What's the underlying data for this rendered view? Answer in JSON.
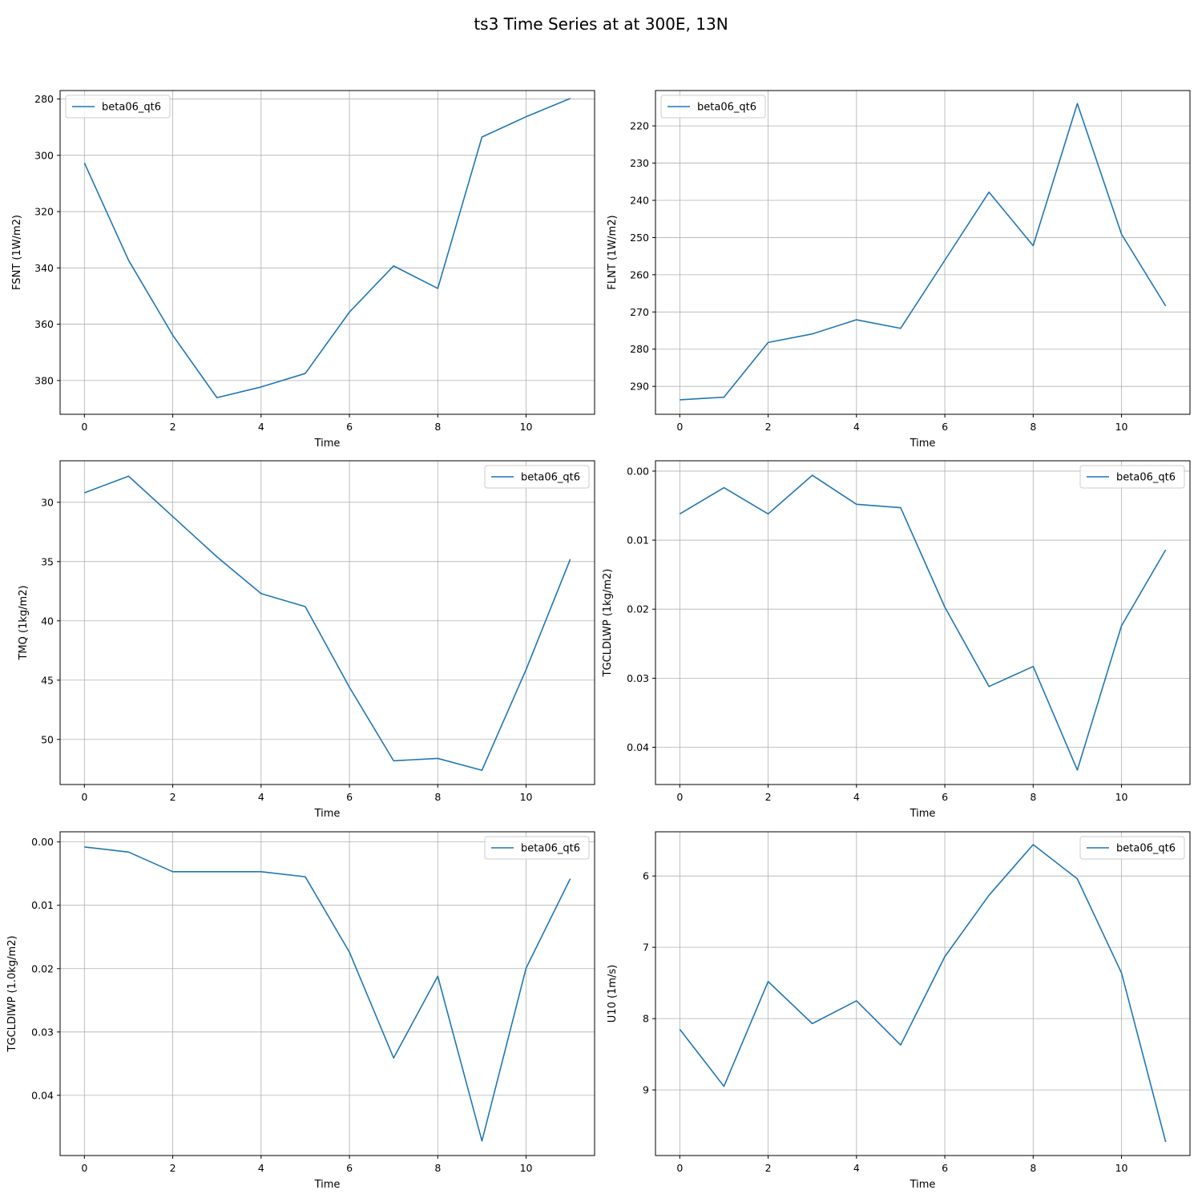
{
  "figure": {
    "title": "ts3 Time Series at at 300E, 13N"
  },
  "chart_data": [
    {
      "type": "line",
      "xlabel": "Time",
      "ylabel": "FSNT (1W/m2)",
      "x": [
        0,
        1,
        2,
        3,
        4,
        5,
        6,
        7,
        8,
        9,
        10,
        11
      ],
      "xlim": [
        -0.55,
        11.55
      ],
      "xticks": [
        0,
        2,
        4,
        6,
        8,
        10
      ],
      "ylim": [
        392,
        277
      ],
      "yinverted": true,
      "yticks": [
        280,
        300,
        320,
        340,
        360,
        380
      ],
      "grid": true,
      "legend": "upper left",
      "color": "#1f77b4",
      "series": [
        {
          "name": "beta06_qt6",
          "values": [
            302.7,
            337.3,
            363.9,
            386.1,
            382.3,
            377.5,
            355.7,
            339.3,
            347.3,
            293.5,
            286.3,
            279.8
          ]
        }
      ]
    },
    {
      "type": "line",
      "xlabel": "Time",
      "ylabel": "FLNT (1W/m2)",
      "x": [
        0,
        1,
        2,
        3,
        4,
        5,
        6,
        7,
        8,
        9,
        10,
        11
      ],
      "xlim": [
        -0.55,
        11.55
      ],
      "xticks": [
        0,
        2,
        4,
        6,
        8,
        10
      ],
      "ylim": [
        297.5,
        210.5
      ],
      "yinverted": true,
      "yticks": [
        220,
        230,
        240,
        250,
        260,
        270,
        280,
        290
      ],
      "grid": true,
      "legend": "upper left",
      "color": "#1f77b4",
      "series": [
        {
          "name": "beta06_qt6",
          "values": [
            293.6,
            292.9,
            278.2,
            275.9,
            272.1,
            274.4,
            256.1,
            237.8,
            252.2,
            214.0,
            249.1,
            268.4
          ]
        }
      ]
    },
    {
      "type": "line",
      "xlabel": "Time",
      "ylabel": "TMQ (1kg/m2)",
      "x": [
        0,
        1,
        2,
        3,
        4,
        5,
        6,
        7,
        8,
        9,
        10,
        11
      ],
      "xlim": [
        -0.55,
        11.55
      ],
      "xticks": [
        0,
        2,
        4,
        6,
        8,
        10
      ],
      "ylim": [
        53.8,
        26.5
      ],
      "yinverted": true,
      "yticks": [
        30,
        35,
        40,
        45,
        50
      ],
      "grid": true,
      "legend": "upper right",
      "color": "#1f77b4",
      "series": [
        {
          "name": "beta06_qt6",
          "values": [
            29.2,
            27.8,
            31.2,
            34.6,
            37.7,
            38.8,
            45.6,
            51.8,
            51.6,
            52.6,
            44.1,
            34.8
          ]
        }
      ]
    },
    {
      "type": "line",
      "xlabel": "Time",
      "ylabel": "TGCLDLWP (1kg/m2)",
      "x": [
        0,
        1,
        2,
        3,
        4,
        5,
        6,
        7,
        8,
        9,
        10,
        11
      ],
      "xlim": [
        -0.55,
        11.55
      ],
      "xticks": [
        0,
        2,
        4,
        6,
        8,
        10
      ],
      "ylim": [
        0.0454,
        -0.0015
      ],
      "yinverted": true,
      "yticks": [
        0.0,
        0.01,
        0.02,
        0.03,
        0.04
      ],
      "ytick_labels": [
        "0.00",
        "0.01",
        "0.02",
        "0.03",
        "0.04"
      ],
      "grid": true,
      "legend": "upper right",
      "color": "#1f77b4",
      "series": [
        {
          "name": "beta06_qt6",
          "values": [
            0.0062,
            0.0024,
            0.0062,
            0.0006,
            0.0048,
            0.0053,
            0.0197,
            0.0312,
            0.0283,
            0.0433,
            0.0224,
            0.0114
          ]
        }
      ]
    },
    {
      "type": "line",
      "xlabel": "Time",
      "ylabel": "TGCLDIWP (1.0kg/m2)",
      "x": [
        0,
        1,
        2,
        3,
        4,
        5,
        6,
        7,
        8,
        9,
        10,
        11
      ],
      "xlim": [
        -0.55,
        11.55
      ],
      "xticks": [
        0,
        2,
        4,
        6,
        8,
        10
      ],
      "ylim": [
        0.0495,
        -0.0016
      ],
      "yinverted": true,
      "yticks": [
        0.0,
        0.01,
        0.02,
        0.03,
        0.04
      ],
      "ytick_labels": [
        "0.00",
        "0.01",
        "0.02",
        "0.03",
        "0.04"
      ],
      "grid": true,
      "legend": "upper right",
      "color": "#1f77b4",
      "series": [
        {
          "name": "beta06_qt6",
          "values": [
            0.0008,
            0.0016,
            0.0047,
            0.0047,
            0.0047,
            0.0055,
            0.0174,
            0.0341,
            0.0212,
            0.0472,
            0.0199,
            0.0058
          ]
        }
      ]
    },
    {
      "type": "line",
      "xlabel": "Time",
      "ylabel": "U10 (1m/s)",
      "x": [
        0,
        1,
        2,
        3,
        4,
        5,
        6,
        7,
        8,
        9,
        10,
        11
      ],
      "xlim": [
        -0.55,
        11.55
      ],
      "xticks": [
        0,
        2,
        4,
        6,
        8,
        10
      ],
      "ylim": [
        9.92,
        5.38
      ],
      "yinverted": true,
      "yticks": [
        6,
        7,
        8,
        9
      ],
      "grid": true,
      "legend": "upper right",
      "color": "#1f77b4",
      "series": [
        {
          "name": "beta06_qt6",
          "values": [
            8.15,
            8.95,
            7.48,
            8.07,
            7.75,
            8.37,
            7.13,
            6.27,
            5.56,
            6.04,
            7.36,
            9.73
          ]
        }
      ]
    }
  ]
}
